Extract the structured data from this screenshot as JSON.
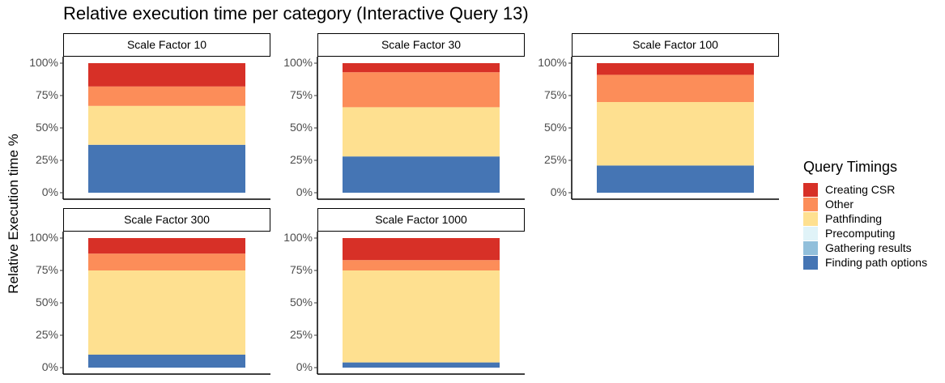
{
  "chart_data": {
    "type": "bar",
    "title": "Relative execution time per category (Interactive Query 13)",
    "ylabel": "Relative Execution time %",
    "xlabel": "",
    "ylim": [
      0,
      100
    ],
    "y_ticks": [
      "0%",
      "25%",
      "50%",
      "75%",
      "100%"
    ],
    "legend_title": "Query Timings",
    "legend_position": "right",
    "grid": false,
    "series": [
      {
        "name": "Creating CSR",
        "color": "#d73027"
      },
      {
        "name": "Other",
        "color": "#fc8d59"
      },
      {
        "name": "Pathfinding",
        "color": "#fee090"
      },
      {
        "name": "Precomputing",
        "color": "#e0f3f8"
      },
      {
        "name": "Gathering results",
        "color": "#91bfdb"
      },
      {
        "name": "Finding path options",
        "color": "#4575b4"
      }
    ],
    "panels": [
      {
        "label": "Scale Factor 10",
        "values": {
          "Finding path options": 37,
          "Gathering results": 0,
          "Precomputing": 0,
          "Pathfinding": 30,
          "Other": 15,
          "Creating CSR": 18
        }
      },
      {
        "label": "Scale Factor 30",
        "values": {
          "Finding path options": 28,
          "Gathering results": 0,
          "Precomputing": 0,
          "Pathfinding": 38,
          "Other": 27,
          "Creating CSR": 7
        }
      },
      {
        "label": "Scale Factor 100",
        "values": {
          "Finding path options": 21,
          "Gathering results": 0,
          "Precomputing": 0,
          "Pathfinding": 49,
          "Other": 21,
          "Creating CSR": 9
        }
      },
      {
        "label": "Scale Factor 300",
        "values": {
          "Finding path options": 10,
          "Gathering results": 0,
          "Precomputing": 0,
          "Pathfinding": 65,
          "Other": 13,
          "Creating CSR": 12
        }
      },
      {
        "label": "Scale Factor 1000",
        "values": {
          "Finding path options": 4,
          "Gathering results": 0,
          "Precomputing": 0,
          "Pathfinding": 71,
          "Other": 8,
          "Creating CSR": 17
        }
      }
    ]
  }
}
